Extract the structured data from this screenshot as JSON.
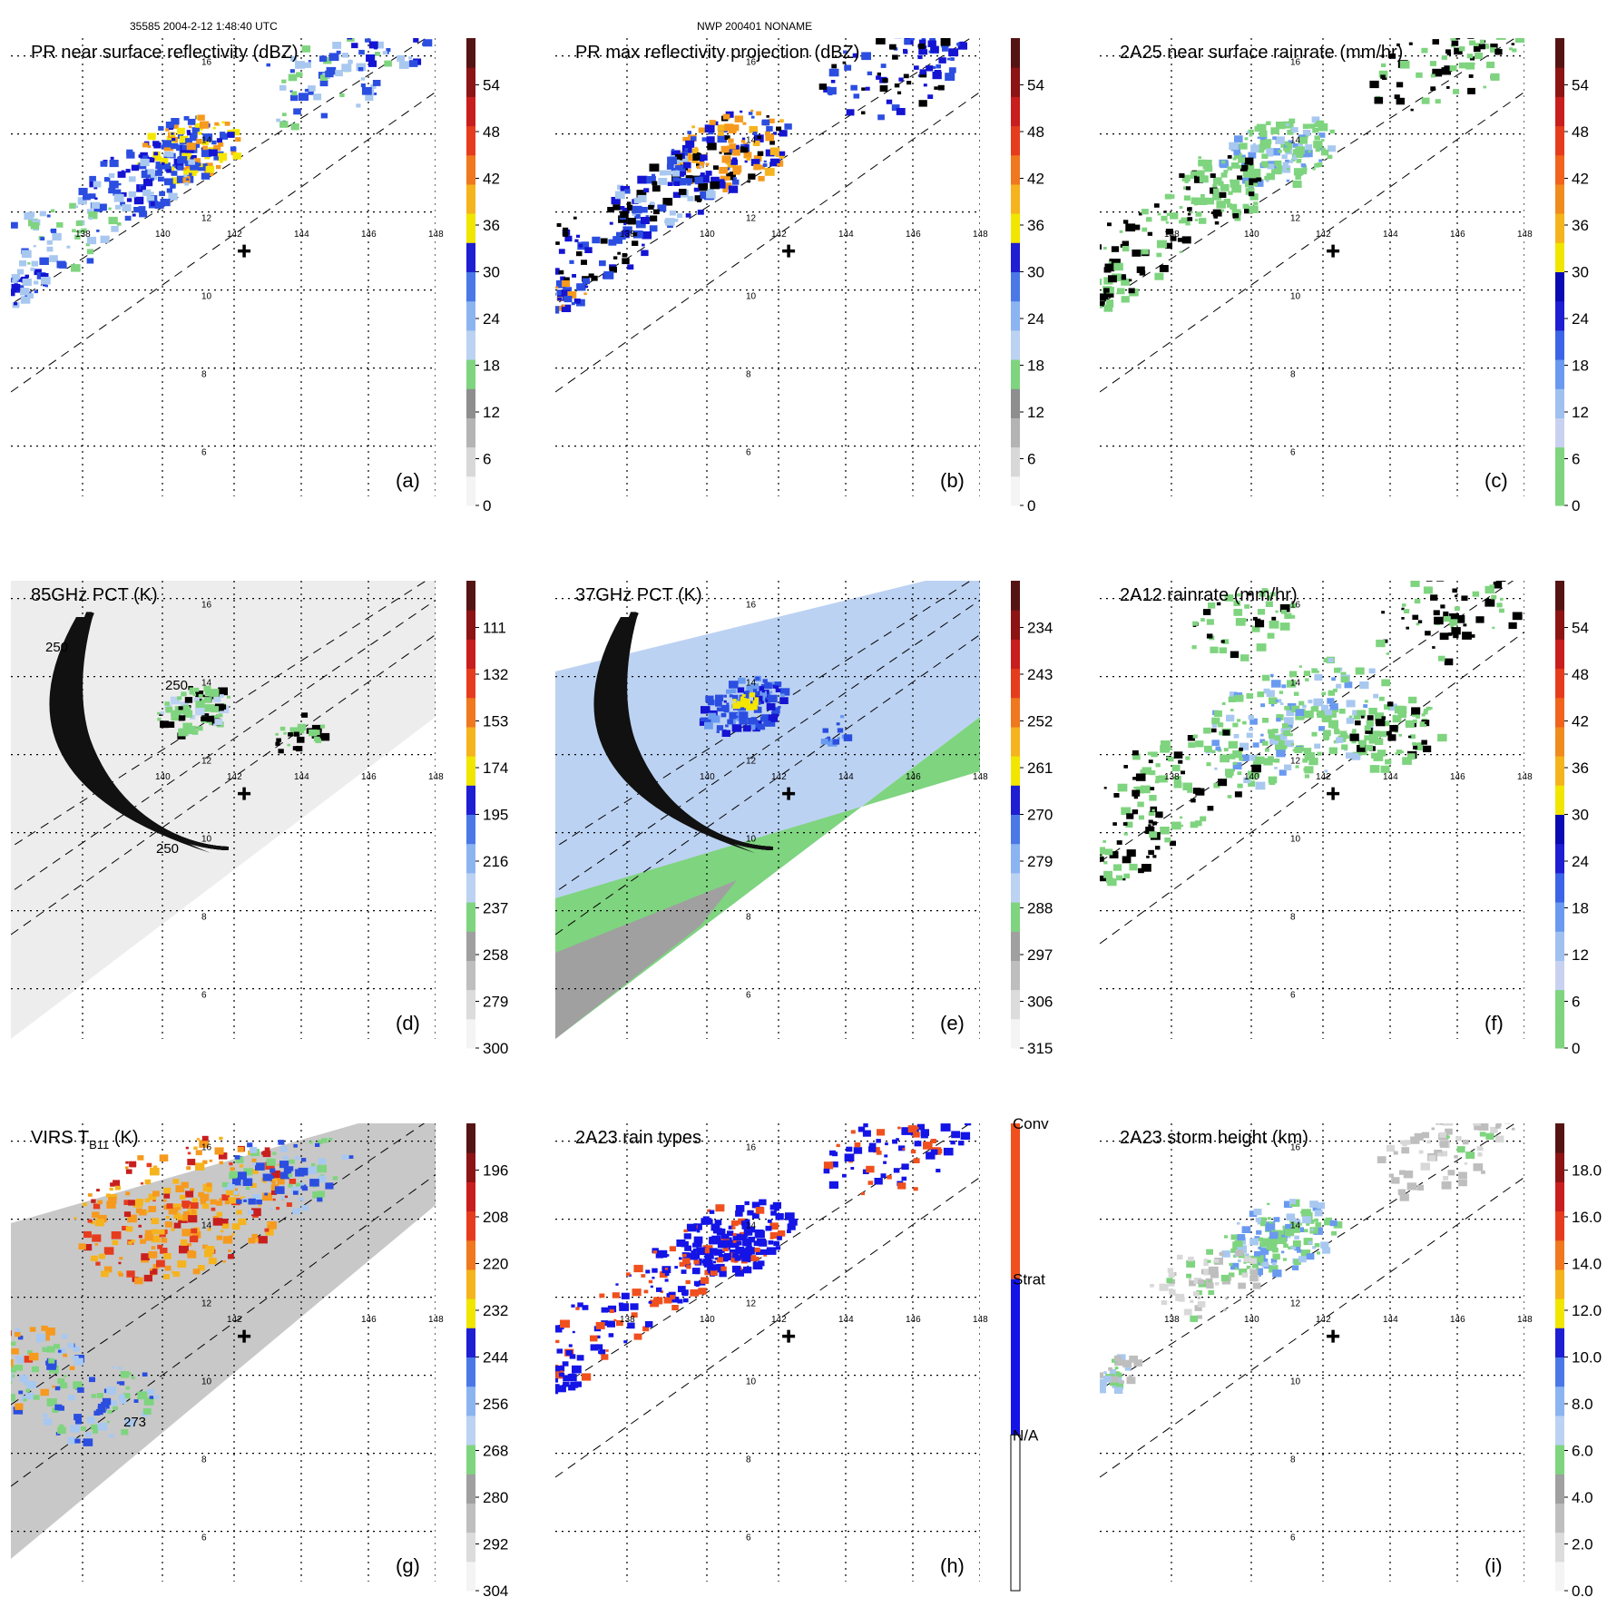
{
  "header": {
    "left": "35585 2004-2-12 1:48:40 UTC",
    "center": "NWP 200401 NONAME"
  },
  "colors": {
    "rain_green": "#7fd47f",
    "rain_light_blue": "#a8c8f0",
    "rain_blue": "#2b4ee0",
    "rain_dark_blue": "#1414d2",
    "yellow": "#f5e600",
    "orange": "#f59a1e",
    "red": "#d2281e",
    "dark_red": "#5a1414",
    "gray_scale_light": "#ededed",
    "conv_orange": "#f0501e",
    "strat_blue": "#1414e6"
  },
  "chart_data": [
    {
      "id": "a",
      "label": "(a)",
      "type": "heatmap",
      "title": "PR near surface reflectivity (dBZ)",
      "x_ticks": [
        "138",
        "140",
        "142",
        "144",
        "146",
        "148"
      ],
      "y_ticks": [
        "6",
        "8",
        "10",
        "12",
        "14",
        "16"
      ],
      "colorbar_ticks": [
        "0",
        "6",
        "12",
        "18",
        "24",
        "30",
        "36",
        "42",
        "48",
        "54"
      ],
      "colorbar_colors": [
        "#f4f4f4",
        "#d8d8d8",
        "#b4b4b4",
        "#8e8e8e",
        "#7fd47f",
        "#bcd2f2",
        "#8cb4f0",
        "#4a78e6",
        "#1e1ed2",
        "#f0e600",
        "#f5b41e",
        "#f0781e",
        "#e63c1e",
        "#c81e1e",
        "#8c1414",
        "#551414"
      ],
      "swath": true,
      "swath_mode": "pr",
      "cross": true,
      "rings": false,
      "field_colors": [
        "#2b4ee0",
        "#1414d2",
        "#a8c8f0",
        "#7fd47f",
        "#f5e600",
        "#f59a1e"
      ],
      "blobs": [
        {
          "lon": 140.7,
          "lat": 13.7,
          "r": 1.1,
          "n": 140,
          "pal": [
            1,
            0,
            0,
            4,
            4,
            5
          ]
        },
        {
          "lon": 139.3,
          "lat": 12.8,
          "r": 1.2,
          "n": 90,
          "pal": [
            0,
            0,
            1,
            2
          ]
        },
        {
          "lon": 137.5,
          "lat": 11.6,
          "r": 1.3,
          "n": 60,
          "pal": [
            0,
            2,
            3
          ]
        },
        {
          "lon": 136.2,
          "lat": 10.1,
          "r": 0.6,
          "n": 40,
          "pal": [
            1,
            0,
            2
          ]
        },
        {
          "lon": 144.6,
          "lat": 15.4,
          "r": 1.5,
          "n": 50,
          "pal": [
            0,
            2,
            3
          ]
        },
        {
          "lon": 146.2,
          "lat": 16.3,
          "r": 1.2,
          "n": 40,
          "pal": [
            0,
            1,
            2
          ]
        }
      ]
    },
    {
      "id": "b",
      "label": "(b)",
      "type": "heatmap",
      "title": "PR max reflectivity projection (dBZ)",
      "x_ticks": [
        "138",
        "140",
        "142",
        "144",
        "146",
        "148"
      ],
      "y_ticks": [
        "6",
        "8",
        "10",
        "12",
        "14",
        "16"
      ],
      "colorbar_ticks": [
        "0",
        "6",
        "12",
        "18",
        "24",
        "30",
        "36",
        "42",
        "48",
        "54"
      ],
      "colorbar_colors": [
        "#f4f4f4",
        "#d8d8d8",
        "#b4b4b4",
        "#8e8e8e",
        "#7fd47f",
        "#bcd2f2",
        "#8cb4f0",
        "#4a78e6",
        "#1e1ed2",
        "#f0e600",
        "#f5b41e",
        "#f0781e",
        "#e63c1e",
        "#c81e1e",
        "#8c1414",
        "#551414"
      ],
      "swath": true,
      "swath_mode": "pr",
      "cross": true,
      "rings": false,
      "field_colors": [
        "#2b4ee0",
        "#1414d2",
        "#f59a1e",
        "#f5b41e",
        "#000000",
        "#a8c8f0"
      ],
      "blobs": [
        {
          "lon": 140.6,
          "lat": 13.6,
          "r": 1.3,
          "n": 160,
          "pal": [
            2,
            3,
            2,
            0,
            1,
            4
          ]
        },
        {
          "lon": 138.9,
          "lat": 12.6,
          "r": 1.2,
          "n": 90,
          "pal": [
            0,
            1,
            4,
            5
          ]
        },
        {
          "lon": 137.2,
          "lat": 11.3,
          "r": 1.2,
          "n": 60,
          "pal": [
            0,
            4,
            1
          ]
        },
        {
          "lon": 136.1,
          "lat": 10.0,
          "r": 0.6,
          "n": 40,
          "pal": [
            1,
            0,
            4,
            2
          ]
        },
        {
          "lon": 145.2,
          "lat": 15.6,
          "r": 1.4,
          "n": 60,
          "pal": [
            0,
            4,
            1
          ]
        },
        {
          "lon": 146.6,
          "lat": 16.4,
          "r": 0.9,
          "n": 40,
          "pal": [
            0,
            4,
            1
          ]
        }
      ]
    },
    {
      "id": "c",
      "label": "(c)",
      "type": "heatmap",
      "title": "2A25 near surface rainrate (mm/hr)",
      "x_ticks": [
        "138",
        "140",
        "142",
        "144",
        "146",
        "148"
      ],
      "y_ticks": [
        "6",
        "8",
        "10",
        "12",
        "14",
        "16"
      ],
      "colorbar_ticks": [
        "0",
        "6",
        "12",
        "18",
        "24",
        "30",
        "36",
        "42",
        "48",
        "54"
      ],
      "colorbar_colors": [
        "#7fd47f",
        "#7fd47f",
        "#c8d2f0",
        "#a0c0f0",
        "#6a9af0",
        "#3c64e6",
        "#1e1ed2",
        "#0a0ab4",
        "#f0e600",
        "#f5b41e",
        "#f08c1e",
        "#f0641e",
        "#e63c1e",
        "#c81e1e",
        "#8c1414",
        "#551414"
      ],
      "swath": true,
      "swath_mode": "pr",
      "cross": true,
      "rings": false,
      "field_colors": [
        "#7fd47f",
        "#7fd47f",
        "#a8c8f0",
        "#000000",
        "#6a9af0"
      ],
      "blobs": [
        {
          "lon": 140.7,
          "lat": 13.6,
          "r": 1.2,
          "n": 140,
          "pal": [
            0,
            1,
            2,
            0,
            4
          ]
        },
        {
          "lon": 139.0,
          "lat": 12.6,
          "r": 1.2,
          "n": 90,
          "pal": [
            0,
            1,
            3
          ]
        },
        {
          "lon": 137.3,
          "lat": 11.3,
          "r": 1.2,
          "n": 50,
          "pal": [
            0,
            3
          ]
        },
        {
          "lon": 136.1,
          "lat": 10.0,
          "r": 0.6,
          "n": 30,
          "pal": [
            0,
            3
          ]
        },
        {
          "lon": 145.3,
          "lat": 15.7,
          "r": 1.4,
          "n": 50,
          "pal": [
            0,
            3
          ]
        },
        {
          "lon": 146.7,
          "lat": 16.4,
          "r": 0.9,
          "n": 35,
          "pal": [
            0,
            3
          ]
        }
      ]
    },
    {
      "id": "d",
      "label": "(d)",
      "type": "heatmap",
      "title": "85GHz PCT (K)",
      "x_ticks": [
        "140",
        "142",
        "144",
        "146",
        "148"
      ],
      "y_ticks": [
        "6",
        "8",
        "10",
        "12",
        "14",
        "16"
      ],
      "colorbar_ticks": [
        "300",
        "279",
        "258",
        "237",
        "216",
        "195",
        "174",
        "153",
        "132",
        "111"
      ],
      "colorbar_colors": [
        "#f4f4f4",
        "#dcdcdc",
        "#bebebe",
        "#a0a0a0",
        "#7fd47f",
        "#bcd2f2",
        "#8cb4f0",
        "#4a78e6",
        "#1e1ed2",
        "#f0e600",
        "#f5b41e",
        "#f0781e",
        "#e63c1e",
        "#c81e1e",
        "#8c1414",
        "#551414"
      ],
      "swath": true,
      "swath_mode": "tmi_gray",
      "cross": true,
      "rings": true,
      "contour_labels": [
        "250",
        "250",
        "250"
      ],
      "field_colors": [
        "#7fd47f",
        "#bcd2f2",
        "#000000"
      ],
      "blobs": [
        {
          "lon": 140.9,
          "lat": 13.2,
          "r": 0.8,
          "n": 90,
          "pal": [
            0,
            0,
            1,
            2
          ]
        },
        {
          "lon": 143.8,
          "lat": 12.6,
          "r": 0.6,
          "n": 25,
          "pal": [
            2,
            0
          ]
        },
        {
          "lon": 135.6,
          "lat": 9.6,
          "r": 0.3,
          "n": 10,
          "pal": [
            0,
            2
          ]
        }
      ]
    },
    {
      "id": "e",
      "label": "(e)",
      "type": "heatmap",
      "title": "37GHz PCT (K)",
      "x_ticks": [
        "140",
        "142",
        "144",
        "146",
        "148"
      ],
      "y_ticks": [
        "6",
        "8",
        "10",
        "12",
        "14",
        "16"
      ],
      "colorbar_ticks": [
        "315",
        "306",
        "297",
        "288",
        "279",
        "270",
        "261",
        "252",
        "243",
        "234"
      ],
      "colorbar_colors": [
        "#f4f4f4",
        "#dcdcdc",
        "#bebebe",
        "#a0a0a0",
        "#7fd47f",
        "#bcd2f2",
        "#8cb4f0",
        "#4a78e6",
        "#1e1ed2",
        "#f0e600",
        "#f5b41e",
        "#f0781e",
        "#e63c1e",
        "#c81e1e",
        "#8c1414",
        "#551414"
      ],
      "swath": true,
      "swath_mode": "tmi_37",
      "cross": true,
      "rings": true,
      "field_colors": [
        "#2b4ee0",
        "#1414d2",
        "#f5e600",
        "#6a9af0"
      ],
      "blobs": [
        {
          "lon": 140.9,
          "lat": 13.3,
          "r": 0.9,
          "n": 120,
          "pal": [
            0,
            1,
            3,
            0
          ]
        },
        {
          "lon": 141.0,
          "lat": 13.4,
          "r": 0.25,
          "n": 15,
          "pal": [
            2
          ]
        },
        {
          "lon": 143.6,
          "lat": 12.7,
          "r": 0.4,
          "n": 12,
          "pal": [
            3,
            0
          ]
        }
      ]
    },
    {
      "id": "f",
      "label": "(f)",
      "type": "heatmap",
      "title": "2A12 rainrate (mm/hr)",
      "x_ticks": [
        "138",
        "140",
        "142",
        "144",
        "146",
        "148"
      ],
      "y_ticks": [
        "6",
        "8",
        "10",
        "12",
        "14",
        "16"
      ],
      "colorbar_ticks": [
        "0",
        "6",
        "12",
        "18",
        "24",
        "30",
        "36",
        "42",
        "48",
        "54"
      ],
      "colorbar_colors": [
        "#7fd47f",
        "#7fd47f",
        "#c8d2f0",
        "#a0c0f0",
        "#6a9af0",
        "#3c64e6",
        "#1e1ed2",
        "#0a0ab4",
        "#f0e600",
        "#f5b41e",
        "#f08c1e",
        "#f0641e",
        "#e63c1e",
        "#c81e1e",
        "#8c1414",
        "#551414"
      ],
      "swath": false,
      "swath_mode": "tmi_rain",
      "cross": true,
      "rings": false,
      "field_colors": [
        "#7fd47f",
        "#7fd47f",
        "#a8c8f0",
        "#6a9af0",
        "#000000"
      ],
      "blobs": [
        {
          "lon": 141.2,
          "lat": 12.9,
          "r": 2.0,
          "n": 220,
          "pal": [
            0,
            1,
            0,
            2,
            3
          ]
        },
        {
          "lon": 144.0,
          "lat": 12.6,
          "r": 1.1,
          "n": 80,
          "pal": [
            0,
            1,
            4
          ]
        },
        {
          "lon": 138.2,
          "lat": 11.4,
          "r": 1.6,
          "n": 90,
          "pal": [
            0,
            1,
            4
          ]
        },
        {
          "lon": 145.6,
          "lat": 15.6,
          "r": 1.6,
          "n": 60,
          "pal": [
            0,
            4
          ]
        },
        {
          "lon": 136.7,
          "lat": 9.6,
          "r": 1.0,
          "n": 40,
          "pal": [
            0,
            4
          ]
        },
        {
          "lon": 139.7,
          "lat": 15.4,
          "r": 1.1,
          "n": 50,
          "pal": [
            0,
            1,
            4
          ]
        }
      ]
    },
    {
      "id": "g",
      "label": "(g)",
      "type": "heatmap",
      "title": "VIRS T",
      "title_sub": "B11",
      "title_tail": " (K)",
      "x_ticks": [
        "142",
        "146",
        "148"
      ],
      "y_ticks": [
        "6",
        "8",
        "10",
        "12",
        "14",
        "16"
      ],
      "colorbar_ticks": [
        "304",
        "292",
        "280",
        "268",
        "256",
        "244",
        "232",
        "220",
        "208",
        "196"
      ],
      "colorbar_colors": [
        "#f4f4f4",
        "#dcdcdc",
        "#bebebe",
        "#a0a0a0",
        "#7fd47f",
        "#bcd2f2",
        "#8cb4f0",
        "#4a78e6",
        "#1e1ed2",
        "#f0e600",
        "#f5b41e",
        "#f0781e",
        "#e63c1e",
        "#c81e1e",
        "#8c1414",
        "#551414"
      ],
      "swath": false,
      "swath_mode": "virs",
      "cross": true,
      "rings": false,
      "contour_labels": [
        "273"
      ],
      "field_colors": [
        "#f59a1e",
        "#f5b41e",
        "#e63c1e",
        "#c81e1e",
        "#2b4ee0",
        "#7fd47f",
        "#a8c8f0"
      ],
      "blobs": [
        {
          "lon": 140.5,
          "lat": 14.3,
          "r": 2.3,
          "n": 260,
          "pal": [
            0,
            1,
            2,
            3,
            0,
            1
          ]
        },
        {
          "lon": 136.0,
          "lat": 10.2,
          "r": 1.4,
          "n": 90,
          "pal": [
            4,
            6,
            5,
            0
          ]
        },
        {
          "lon": 135.6,
          "lat": 10.6,
          "r": 0.8,
          "n": 30,
          "pal": [
            2,
            0
          ]
        },
        {
          "lon": 143.5,
          "lat": 15.3,
          "r": 1.4,
          "n": 90,
          "pal": [
            4,
            6,
            5
          ]
        },
        {
          "lon": 138.4,
          "lat": 9.3,
          "r": 1.2,
          "n": 70,
          "pal": [
            4,
            5,
            6
          ]
        }
      ]
    },
    {
      "id": "h",
      "label": "(h)",
      "type": "heatmap",
      "title": "2A23 rain types",
      "x_ticks": [
        "138",
        "140",
        "142",
        "144",
        "146",
        "148"
      ],
      "y_ticks": [
        "6",
        "8",
        "10",
        "12",
        "14",
        "16"
      ],
      "category_labels": [
        "N/A",
        "Strat",
        "Conv"
      ],
      "swath": true,
      "swath_mode": "pr",
      "cross": true,
      "rings": false,
      "field_colors": [
        "#1414e6",
        "#1414e6",
        "#f0501e"
      ],
      "blobs": [
        {
          "lon": 140.7,
          "lat": 13.6,
          "r": 1.2,
          "n": 170,
          "pal": [
            0,
            1,
            0,
            0,
            2
          ]
        },
        {
          "lon": 139.0,
          "lat": 12.6,
          "r": 1.1,
          "n": 70,
          "pal": [
            0,
            0,
            2
          ]
        },
        {
          "lon": 137.2,
          "lat": 11.3,
          "r": 1.1,
          "n": 45,
          "pal": [
            0,
            1,
            2
          ]
        },
        {
          "lon": 136.1,
          "lat": 10.0,
          "r": 0.5,
          "n": 30,
          "pal": [
            0,
            0,
            2
          ]
        },
        {
          "lon": 145.3,
          "lat": 15.7,
          "r": 1.4,
          "n": 55,
          "pal": [
            0,
            2,
            0
          ]
        },
        {
          "lon": 146.7,
          "lat": 16.4,
          "r": 0.9,
          "n": 35,
          "pal": [
            0,
            2
          ]
        }
      ]
    },
    {
      "id": "i",
      "label": "(i)",
      "type": "heatmap",
      "title": "2A23 storm height (km)",
      "x_ticks": [
        "138",
        "140",
        "142",
        "144",
        "146",
        "148"
      ],
      "y_ticks": [
        "6",
        "8",
        "10",
        "12",
        "14",
        "16"
      ],
      "colorbar_ticks": [
        "0.0",
        "2.0",
        "4.0",
        "6.0",
        "8.0",
        "10.0",
        "12.0",
        "14.0",
        "16.0",
        "18.0"
      ],
      "colorbar_colors": [
        "#f4f4f4",
        "#dcdcdc",
        "#bebebe",
        "#a0a0a0",
        "#7fd47f",
        "#bcd2f2",
        "#8cb4f0",
        "#4a78e6",
        "#1e1ed2",
        "#f0e600",
        "#f5b41e",
        "#f0781e",
        "#e63c1e",
        "#c81e1e",
        "#8c1414",
        "#551414"
      ],
      "swath": true,
      "swath_mode": "pr",
      "cross": true,
      "rings": false,
      "field_colors": [
        "#7fd47f",
        "#a8c8f0",
        "#6a9af0",
        "#bebebe",
        "#d8d8d8"
      ],
      "blobs": [
        {
          "lon": 140.7,
          "lat": 13.6,
          "r": 1.2,
          "n": 150,
          "pal": [
            0,
            1,
            2,
            0
          ]
        },
        {
          "lon": 138.7,
          "lat": 12.4,
          "r": 1.2,
          "n": 70,
          "pal": [
            3,
            0,
            4
          ]
        },
        {
          "lon": 136.2,
          "lat": 10.1,
          "r": 0.6,
          "n": 40,
          "pal": [
            1,
            0,
            3
          ]
        },
        {
          "lon": 145.3,
          "lat": 15.7,
          "r": 1.4,
          "n": 50,
          "pal": [
            3,
            4
          ]
        },
        {
          "lon": 146.6,
          "lat": 16.4,
          "r": 0.9,
          "n": 30,
          "pal": [
            3,
            4,
            0
          ]
        }
      ]
    }
  ]
}
